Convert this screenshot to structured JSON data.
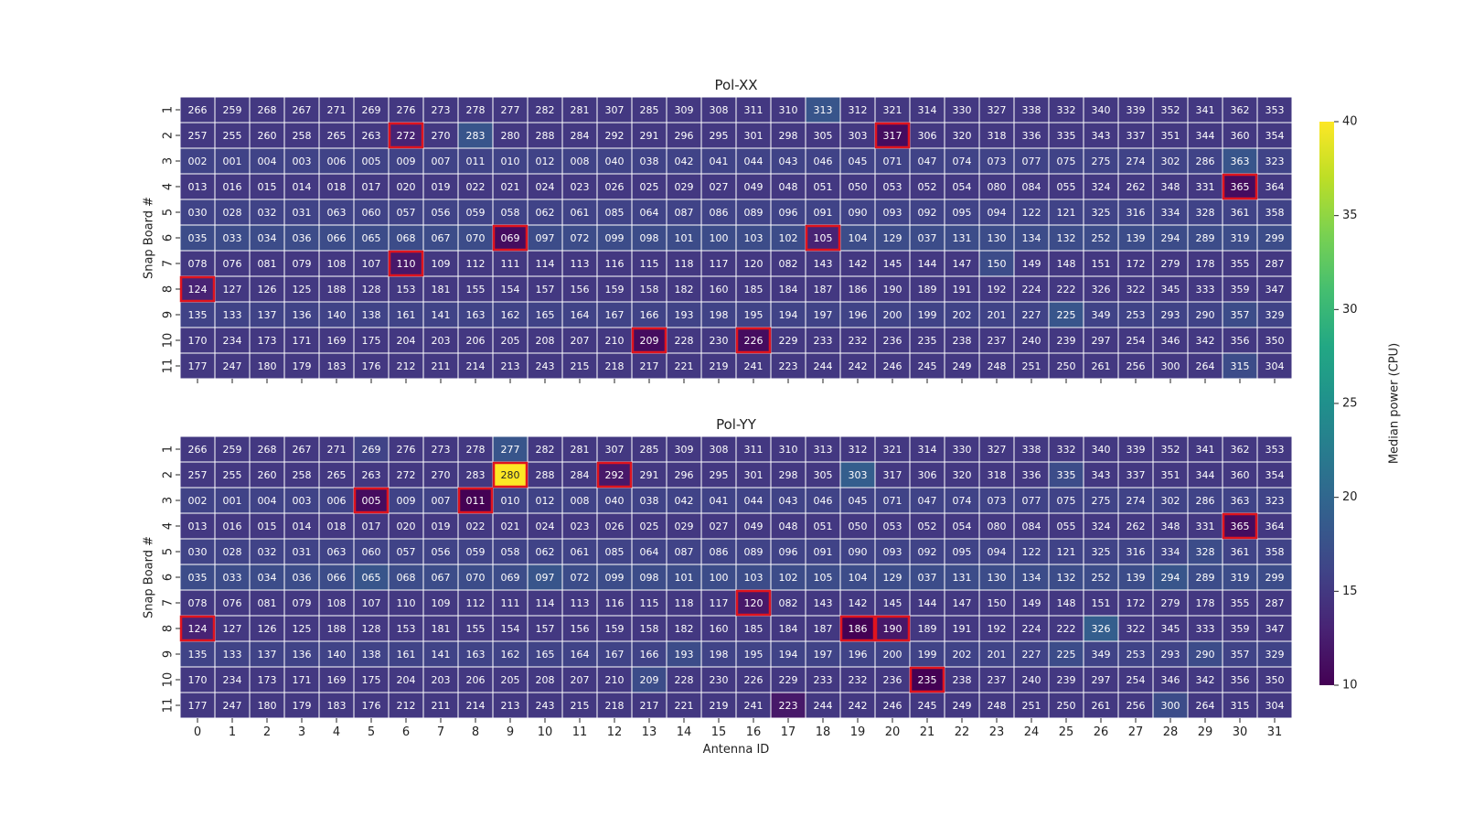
{
  "chart_data": {
    "type": "heatmap",
    "xlabel": "Antenna ID",
    "ylabel": "Snap Board #",
    "x_categories": [
      "0",
      "1",
      "2",
      "3",
      "4",
      "5",
      "6",
      "7",
      "8",
      "9",
      "10",
      "11",
      "12",
      "13",
      "14",
      "15",
      "16",
      "17",
      "18",
      "19",
      "20",
      "21",
      "22",
      "23",
      "24",
      "25",
      "26",
      "27",
      "28",
      "29",
      "30",
      "31"
    ],
    "y_categories": [
      "1",
      "2",
      "3",
      "4",
      "5",
      "6",
      "7",
      "8",
      "9",
      "10",
      "11"
    ],
    "colorbar": {
      "label": "Median power (CPU)",
      "range": [
        10,
        40
      ],
      "ticks": [
        "10",
        "15",
        "20",
        "25",
        "30",
        "35",
        "40"
      ],
      "colormap": "viridis"
    },
    "antenna_labels": [
      [
        "266",
        "259",
        "268",
        "267",
        "271",
        "269",
        "276",
        "273",
        "278",
        "277",
        "282",
        "281",
        "307",
        "285",
        "309",
        "308",
        "311",
        "310",
        "313",
        "312",
        "321",
        "314",
        "330",
        "327",
        "338",
        "332",
        "340",
        "339",
        "352",
        "341",
        "362",
        "353"
      ],
      [
        "257",
        "255",
        "260",
        "258",
        "265",
        "263",
        "272",
        "270",
        "283",
        "280",
        "288",
        "284",
        "292",
        "291",
        "296",
        "295",
        "301",
        "298",
        "305",
        "303",
        "317",
        "306",
        "320",
        "318",
        "336",
        "335",
        "343",
        "337",
        "351",
        "344",
        "360",
        "354"
      ],
      [
        "002",
        "001",
        "004",
        "003",
        "006",
        "005",
        "009",
        "007",
        "011",
        "010",
        "012",
        "008",
        "040",
        "038",
        "042",
        "041",
        "044",
        "043",
        "046",
        "045",
        "071",
        "047",
        "074",
        "073",
        "077",
        "075",
        "275",
        "274",
        "302",
        "286",
        "363",
        "323"
      ],
      [
        "013",
        "016",
        "015",
        "014",
        "018",
        "017",
        "020",
        "019",
        "022",
        "021",
        "024",
        "023",
        "026",
        "025",
        "029",
        "027",
        "049",
        "048",
        "051",
        "050",
        "053",
        "052",
        "054",
        "080",
        "084",
        "055",
        "324",
        "262",
        "348",
        "331",
        "365",
        "364"
      ],
      [
        "030",
        "028",
        "032",
        "031",
        "063",
        "060",
        "057",
        "056",
        "059",
        "058",
        "062",
        "061",
        "085",
        "064",
        "087",
        "086",
        "089",
        "096",
        "091",
        "090",
        "093",
        "092",
        "095",
        "094",
        "122",
        "121",
        "325",
        "316",
        "334",
        "328",
        "361",
        "358"
      ],
      [
        "035",
        "033",
        "034",
        "036",
        "066",
        "065",
        "068",
        "067",
        "070",
        "069",
        "097",
        "072",
        "099",
        "098",
        "101",
        "100",
        "103",
        "102",
        "105",
        "104",
        "129",
        "037",
        "131",
        "130",
        "134",
        "132",
        "252",
        "139",
        "294",
        "289",
        "319",
        "299"
      ],
      [
        "078",
        "076",
        "081",
        "079",
        "108",
        "107",
        "110",
        "109",
        "112",
        "111",
        "114",
        "113",
        "116",
        "115",
        "118",
        "117",
        "120",
        "082",
        "143",
        "142",
        "145",
        "144",
        "147",
        "150",
        "149",
        "148",
        "151",
        "172",
        "279",
        "178",
        "355",
        "287"
      ],
      [
        "124",
        "127",
        "126",
        "125",
        "188",
        "128",
        "153",
        "181",
        "155",
        "154",
        "157",
        "156",
        "159",
        "158",
        "182",
        "160",
        "185",
        "184",
        "187",
        "186",
        "190",
        "189",
        "191",
        "192",
        "224",
        "222",
        "326",
        "322",
        "345",
        "333",
        "359",
        "347"
      ],
      [
        "135",
        "133",
        "137",
        "136",
        "140",
        "138",
        "161",
        "141",
        "163",
        "162",
        "165",
        "164",
        "167",
        "166",
        "193",
        "198",
        "195",
        "194",
        "197",
        "196",
        "200",
        "199",
        "202",
        "201",
        "227",
        "225",
        "349",
        "253",
        "293",
        "290",
        "357",
        "329"
      ],
      [
        "170",
        "234",
        "173",
        "171",
        "169",
        "175",
        "204",
        "203",
        "206",
        "205",
        "208",
        "207",
        "210",
        "209",
        "228",
        "230",
        "226",
        "229",
        "233",
        "232",
        "236",
        "235",
        "238",
        "237",
        "240",
        "239",
        "297",
        "254",
        "346",
        "342",
        "356",
        "350"
      ],
      [
        "177",
        "247",
        "180",
        "179",
        "183",
        "176",
        "212",
        "211",
        "214",
        "213",
        "243",
        "215",
        "218",
        "217",
        "221",
        "219",
        "241",
        "223",
        "244",
        "242",
        "246",
        "245",
        "249",
        "248",
        "251",
        "250",
        "261",
        "256",
        "300",
        "264",
        "315",
        "304"
      ]
    ],
    "panels": [
      {
        "title": "Pol-XX",
        "values": [
          [
            15,
            15,
            15,
            15,
            15,
            15,
            15,
            15,
            15,
            15,
            15,
            15,
            15,
            15,
            15,
            15,
            15,
            15,
            18,
            15,
            15,
            15,
            15,
            15,
            15,
            15,
            15,
            15,
            15,
            15,
            15,
            15
          ],
          [
            15,
            15,
            15,
            15,
            15,
            15,
            13,
            15,
            18,
            15,
            15,
            15,
            15,
            15,
            15,
            15,
            15,
            15,
            15,
            15,
            11,
            15,
            15,
            15,
            15,
            15,
            15,
            15,
            15,
            15,
            15,
            15
          ],
          [
            16,
            16,
            16,
            16,
            16,
            16,
            16,
            16,
            16,
            16,
            16,
            16,
            16,
            16,
            16,
            16,
            16,
            16,
            16,
            16,
            16,
            16,
            16,
            16,
            16,
            16,
            16,
            16,
            16,
            16,
            18,
            16
          ],
          [
            15,
            15,
            15,
            15,
            15,
            15,
            15,
            15,
            15,
            15,
            15,
            15,
            15,
            15,
            15,
            15,
            15,
            15,
            15,
            15,
            15,
            15,
            15,
            15,
            15,
            15,
            15,
            15,
            15,
            15,
            11,
            15
          ],
          [
            16,
            16,
            16,
            16,
            16,
            16,
            16,
            16,
            16,
            16,
            16,
            16,
            16,
            16,
            16,
            16,
            16,
            16,
            16,
            16,
            16,
            16,
            16,
            16,
            16,
            16,
            16,
            16,
            16,
            16,
            16,
            16
          ],
          [
            17,
            17,
            17,
            17,
            17,
            17,
            17,
            17,
            17,
            11,
            17,
            17,
            17,
            17,
            17,
            17,
            17,
            17,
            13,
            17,
            17,
            17,
            17,
            17,
            17,
            17,
            17,
            17,
            17,
            17,
            17,
            17
          ],
          [
            15,
            15,
            15,
            15,
            15,
            15,
            12,
            15,
            15,
            15,
            15,
            15,
            15,
            15,
            15,
            15,
            15,
            15,
            15,
            15,
            15,
            15,
            15,
            17,
            15,
            15,
            15,
            15,
            15,
            15,
            15,
            15
          ],
          [
            13,
            15,
            15,
            15,
            15,
            15,
            15,
            15,
            15,
            15,
            15,
            15,
            15,
            15,
            15,
            15,
            15,
            15,
            15,
            15,
            15,
            15,
            15,
            15,
            15,
            15,
            15,
            15,
            15,
            15,
            15,
            15
          ],
          [
            16,
            16,
            16,
            16,
            16,
            16,
            16,
            16,
            16,
            16,
            16,
            16,
            16,
            16,
            16,
            16,
            16,
            16,
            16,
            16,
            16,
            16,
            16,
            16,
            16,
            18,
            16,
            16,
            16,
            16,
            17,
            16
          ],
          [
            15,
            15,
            15,
            15,
            15,
            15,
            15,
            15,
            15,
            15,
            15,
            15,
            15,
            11,
            15,
            15,
            11,
            15,
            15,
            15,
            15,
            15,
            15,
            15,
            15,
            15,
            15,
            15,
            15,
            15,
            15,
            15
          ],
          [
            15,
            15,
            15,
            15,
            15,
            15,
            15,
            15,
            15,
            15,
            15,
            15,
            15,
            15,
            15,
            15,
            15,
            15,
            15,
            15,
            15,
            15,
            15,
            15,
            15,
            15,
            15,
            15,
            15,
            15,
            17,
            15
          ]
        ],
        "flagged": [
          [
            1,
            6
          ],
          [
            1,
            20
          ],
          [
            3,
            30
          ],
          [
            5,
            9
          ],
          [
            5,
            18
          ],
          [
            6,
            6
          ],
          [
            7,
            0
          ],
          [
            9,
            13
          ],
          [
            9,
            16
          ]
        ]
      },
      {
        "title": "Pol-YY",
        "values": [
          [
            15,
            15,
            15,
            15,
            15,
            16,
            15,
            15,
            15,
            18,
            15,
            15,
            15,
            15,
            15,
            15,
            15,
            15,
            15,
            15,
            15,
            15,
            15,
            15,
            15,
            15,
            15,
            15,
            15,
            15,
            15,
            15
          ],
          [
            15,
            15,
            15,
            15,
            15,
            15,
            15,
            15,
            15,
            40,
            15,
            15,
            12,
            15,
            15,
            15,
            15,
            15,
            15,
            19,
            15,
            15,
            15,
            15,
            15,
            17,
            15,
            15,
            15,
            15,
            15,
            15
          ],
          [
            16,
            16,
            16,
            16,
            16,
            11,
            16,
            16,
            10,
            16,
            16,
            16,
            16,
            16,
            16,
            16,
            16,
            16,
            16,
            16,
            16,
            16,
            16,
            16,
            16,
            16,
            16,
            16,
            16,
            16,
            16,
            16
          ],
          [
            15,
            15,
            15,
            15,
            15,
            15,
            15,
            15,
            15,
            15,
            15,
            15,
            15,
            15,
            15,
            15,
            15,
            15,
            15,
            15,
            15,
            15,
            15,
            15,
            15,
            15,
            15,
            15,
            15,
            15,
            11,
            15
          ],
          [
            16,
            16,
            16,
            16,
            16,
            16,
            16,
            16,
            16,
            16,
            16,
            16,
            16,
            16,
            16,
            16,
            16,
            16,
            16,
            16,
            16,
            16,
            16,
            16,
            16,
            16,
            16,
            16,
            16,
            17,
            16,
            16
          ],
          [
            17,
            17,
            17,
            17,
            17,
            18,
            17,
            17,
            17,
            17,
            18,
            17,
            17,
            17,
            17,
            17,
            17,
            17,
            17,
            17,
            17,
            17,
            17,
            17,
            17,
            17,
            17,
            17,
            18,
            17,
            17,
            17
          ],
          [
            15,
            15,
            15,
            15,
            15,
            15,
            15,
            15,
            15,
            15,
            15,
            15,
            15,
            15,
            15,
            15,
            12,
            15,
            15,
            15,
            15,
            15,
            15,
            15,
            15,
            15,
            15,
            15,
            15,
            15,
            15,
            15
          ],
          [
            13,
            15,
            15,
            15,
            15,
            15,
            15,
            15,
            15,
            15,
            15,
            15,
            15,
            15,
            15,
            15,
            15,
            15,
            15,
            10,
            12,
            15,
            15,
            15,
            15,
            15,
            19,
            15,
            15,
            15,
            15,
            15
          ],
          [
            16,
            16,
            16,
            16,
            16,
            16,
            16,
            16,
            16,
            16,
            16,
            16,
            16,
            16,
            17,
            16,
            16,
            16,
            16,
            16,
            16,
            16,
            16,
            16,
            16,
            17,
            16,
            16,
            16,
            17,
            16,
            16
          ],
          [
            15,
            15,
            15,
            15,
            15,
            15,
            15,
            15,
            15,
            15,
            15,
            15,
            15,
            17,
            15,
            15,
            15,
            15,
            15,
            15,
            15,
            10,
            15,
            15,
            15,
            15,
            15,
            15,
            15,
            15,
            15,
            15
          ],
          [
            15,
            15,
            15,
            15,
            15,
            15,
            15,
            15,
            15,
            15,
            15,
            15,
            15,
            15,
            15,
            15,
            15,
            12,
            15,
            15,
            15,
            15,
            15,
            15,
            15,
            15,
            15,
            15,
            17,
            15,
            15,
            15
          ]
        ],
        "flagged": [
          [
            1,
            9
          ],
          [
            1,
            12
          ],
          [
            2,
            5
          ],
          [
            2,
            8
          ],
          [
            3,
            30
          ],
          [
            6,
            16
          ],
          [
            7,
            0
          ],
          [
            7,
            19
          ],
          [
            7,
            20
          ],
          [
            9,
            21
          ]
        ]
      }
    ]
  }
}
